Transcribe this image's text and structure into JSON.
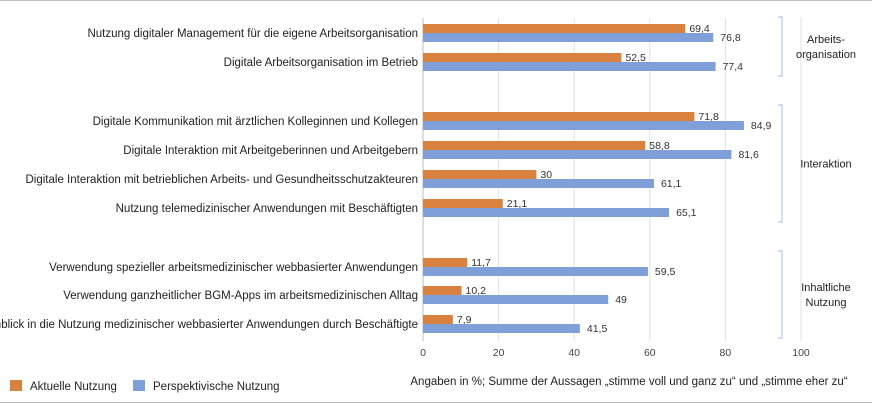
{
  "chart_data": {
    "type": "bar",
    "orientation": "horizontal",
    "categories": [
      "Nutzung digitaler Management für die eigene Arbeitsorganisation",
      "Digitale Arbeitsorganisation im Betrieb",
      "Digitale Kommunikation mit ärztlichen Kolleginnen und Kollegen",
      "Digitale Interaktion mit Arbeitgeberinnen und Arbeitgebern",
      "Digitale Interaktion mit betrieblichen Arbeits- und Gesundheitsschutzakteuren",
      "Nutzung telemedizinischer Anwendungen mit Beschäftigten",
      "Verwendung spezieller arbeitsmedizinischer webbasierter Anwendungen",
      "Verwendung ganzheitlicher BGM-Apps im arbeitsmedizinischen Alltag",
      "Einblick in die Nutzung medizinischer webbasierter Anwendungen durch Beschäftigte"
    ],
    "series": [
      {
        "name": "Aktuelle Nutzung",
        "color": "#d9823f",
        "values": [
          69.4,
          52.5,
          71.8,
          58.8,
          30,
          21.1,
          11.7,
          10.2,
          7.9
        ],
        "value_labels": [
          "69,4",
          "52,5",
          "71,8",
          "58,8",
          "30",
          "21,1",
          "11,7",
          "10,2",
          "7,9"
        ]
      },
      {
        "name": "Perspektivische Nutzung",
        "color": "#7f9fd8",
        "values": [
          76.8,
          77.4,
          84.9,
          81.6,
          61.1,
          65.1,
          59.5,
          49,
          41.5
        ],
        "value_labels": [
          "76,8",
          "77,4",
          "84,9",
          "81,6",
          "61,1",
          "65,1",
          "59,5",
          "49",
          "41,5"
        ]
      }
    ],
    "xlim": [
      0,
      100
    ],
    "xticks": [
      0,
      20,
      40,
      60,
      80,
      100
    ],
    "groups": [
      {
        "lines": [
          "Arbeits-",
          "organisation"
        ],
        "members": [
          0,
          1
        ]
      },
      {
        "lines": [
          "Interaktion"
        ],
        "members": [
          2,
          3,
          4,
          5
        ]
      },
      {
        "lines": [
          "Inhaltliche",
          "Nutzung"
        ],
        "members": [
          6,
          7,
          8
        ]
      }
    ],
    "xlabel": "Angaben in %; Summe der Aussagen „stimme voll und ganz zu“ und „stimme eher zu“",
    "legend_position": "bottom-left",
    "grid": "vertical"
  }
}
